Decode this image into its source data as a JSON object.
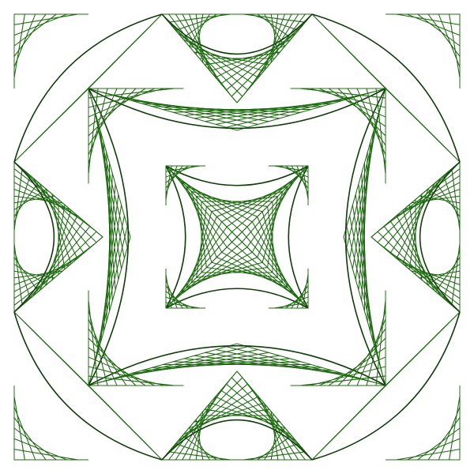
{
  "artwork": {
    "kind": "string-art curve-stitching pattern",
    "background_color": "#ffffff",
    "line_color": "#1f6b12",
    "edge_color": "#0f3d0a",
    "stitch_segments": 14,
    "modules": [
      {
        "name": "outer-top-left",
        "cx": 0,
        "cy": 0
      },
      {
        "name": "outer-top-right",
        "cx": 1,
        "cy": 0
      },
      {
        "name": "outer-bottom-left",
        "cx": 0,
        "cy": 1
      },
      {
        "name": "outer-bottom-right",
        "cx": 1,
        "cy": 1
      }
    ]
  }
}
